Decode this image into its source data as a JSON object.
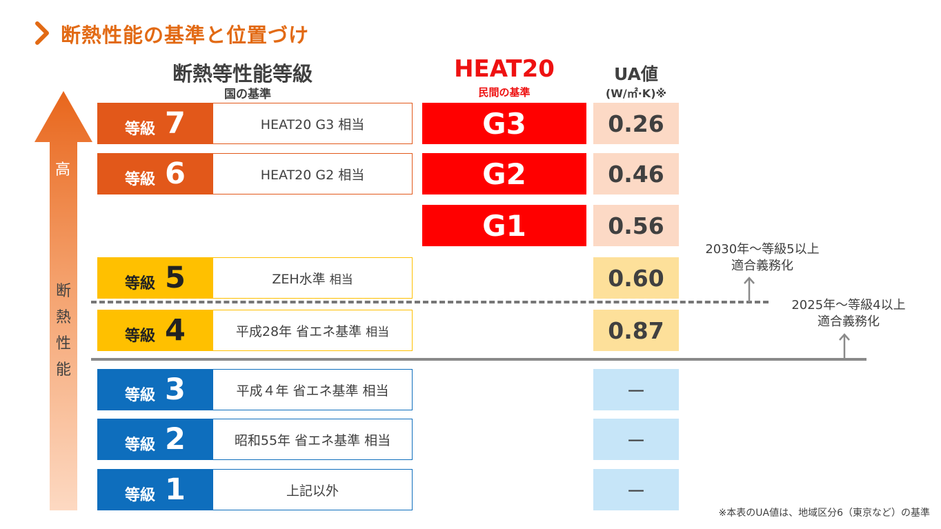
{
  "page_title": "断熱性能の基準と位置づけ",
  "headers": {
    "grade_title": "断熱等性能等級",
    "grade_subtitle": "国の基準",
    "heat20_title": "HEAT20",
    "heat20_subtitle": "民間の基準",
    "ua_title": "UA値",
    "ua_unit": "(W/㎡·K)※"
  },
  "arrow": {
    "top_label": "高",
    "side_label": "断熱性能"
  },
  "grade_word": "等級",
  "rows": [
    {
      "grade": "7",
      "equivalent": "HEAT20 G3 相当",
      "heat20": "G3",
      "ua": "0.26"
    },
    {
      "grade": "6",
      "equivalent": "HEAT20 G2 相当",
      "heat20": "G2",
      "ua": "0.46"
    },
    {
      "grade": "",
      "equivalent": "",
      "heat20": "G1",
      "ua": "0.56"
    },
    {
      "grade": "5",
      "equivalent_main": "ZEH水準",
      "equivalent_suffix": "相当",
      "heat20": "",
      "ua": "0.60"
    },
    {
      "grade": "4",
      "equivalent_main": "平成28年 省エネ基準",
      "equivalent_suffix": "相当",
      "heat20": "",
      "ua": "0.87"
    },
    {
      "grade": "3",
      "equivalent": "平成４年 省エネ基準 相当",
      "heat20": "",
      "ua": "－"
    },
    {
      "grade": "2",
      "equivalent": "昭和55年 省エネ基準 相当",
      "heat20": "",
      "ua": "－"
    },
    {
      "grade": "1",
      "equivalent": "上記以外",
      "heat20": "",
      "ua": "－"
    }
  ],
  "notes": {
    "y2030_line1": "2030年～等級5以上",
    "y2030_line2": "適合義務化",
    "y2025_line1": "2025年～等級4以上",
    "y2025_line2": "適合義務化"
  },
  "footnote": "※本表のUA値は、地域区分6（東京など）の基準",
  "colors": {
    "title_orange": "#e26a14",
    "grade_orange": "#e2581a",
    "grade_yellow": "#ffc000",
    "grade_blue": "#0e6ebd",
    "heat20_red": "#ff0000",
    "ua_pink": "#fcd9c5",
    "ua_yellow": "#fde09a",
    "ua_blue": "#c6e5f8"
  }
}
